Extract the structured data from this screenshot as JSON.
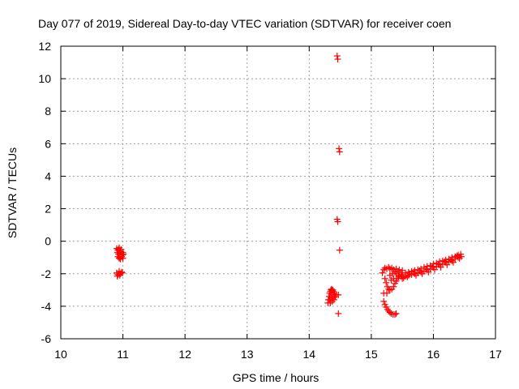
{
  "chart_data": {
    "type": "scatter",
    "title": "Day 077 of 2019, Sidereal Day-to-day VTEC variation (SDTVAR) for receiver coen",
    "xlabel": "GPS time / hours",
    "ylabel": "SDTVAR / TECUs",
    "xlim": [
      10,
      17
    ],
    "ylim": [
      -6,
      12
    ],
    "x_ticks": [
      "10",
      "11",
      "12",
      "13",
      "14",
      "15",
      "16",
      "17"
    ],
    "y_ticks": [
      "-6",
      "-4",
      "-2",
      "0",
      "2",
      "4",
      "6",
      "8",
      "10",
      "12"
    ],
    "grid": true,
    "marker": "+",
    "colors": {
      "series": "#ff0000",
      "grid": "#a0a0a0",
      "axis": "#000000"
    },
    "series": [
      {
        "name": "SDTVAR",
        "points": [
          [
            10.9,
            -0.45
          ],
          [
            10.92,
            -0.55
          ],
          [
            10.94,
            -0.4
          ],
          [
            10.96,
            -0.6
          ],
          [
            10.91,
            -0.7
          ],
          [
            10.93,
            -0.8
          ],
          [
            10.95,
            -0.75
          ],
          [
            10.97,
            -0.65
          ],
          [
            10.99,
            -0.85
          ],
          [
            10.92,
            -0.95
          ],
          [
            10.94,
            -1.05
          ],
          [
            10.96,
            -1.1
          ],
          [
            10.98,
            -0.95
          ],
          [
            11.0,
            -0.7
          ],
          [
            11.01,
            -0.8
          ],
          [
            10.93,
            -0.5
          ],
          [
            10.97,
            -0.5
          ],
          [
            10.95,
            -1.0
          ],
          [
            11.0,
            -1.05
          ],
          [
            10.9,
            -1.95
          ],
          [
            10.92,
            -2.05
          ],
          [
            10.94,
            -1.85
          ],
          [
            10.96,
            -2.0
          ],
          [
            10.98,
            -1.9
          ],
          [
            10.91,
            -2.15
          ],
          [
            10.95,
            -2.1
          ],
          [
            10.99,
            -1.95
          ],
          [
            14.45,
            11.4
          ],
          [
            14.46,
            11.2
          ],
          [
            14.48,
            5.7
          ],
          [
            14.49,
            5.5
          ],
          [
            14.45,
            1.35
          ],
          [
            14.46,
            1.2
          ],
          [
            14.49,
            -0.55
          ],
          [
            14.47,
            -4.45
          ],
          [
            14.3,
            -3.8
          ],
          [
            14.31,
            -3.6
          ],
          [
            14.32,
            -3.4
          ],
          [
            14.33,
            -3.2
          ],
          [
            14.34,
            -3.1
          ],
          [
            14.35,
            -3.0
          ],
          [
            14.36,
            -2.95
          ],
          [
            14.37,
            -3.05
          ],
          [
            14.38,
            -3.0
          ],
          [
            14.39,
            -3.1
          ],
          [
            14.4,
            -3.2
          ],
          [
            14.41,
            -3.3
          ],
          [
            14.42,
            -3.4
          ],
          [
            14.33,
            -3.6
          ],
          [
            14.35,
            -3.5
          ],
          [
            14.36,
            -3.3
          ],
          [
            14.38,
            -3.5
          ],
          [
            14.4,
            -3.6
          ],
          [
            14.44,
            -3.3
          ],
          [
            14.47,
            -3.3
          ],
          [
            14.34,
            -3.8
          ],
          [
            14.37,
            -3.7
          ],
          [
            15.2,
            -3.7
          ],
          [
            15.22,
            -3.9
          ],
          [
            15.24,
            -4.05
          ],
          [
            15.26,
            -4.2
          ],
          [
            15.28,
            -4.3
          ],
          [
            15.3,
            -4.38
          ],
          [
            15.32,
            -4.45
          ],
          [
            15.35,
            -4.5
          ],
          [
            15.38,
            -4.5
          ],
          [
            15.4,
            -4.45
          ],
          [
            15.18,
            -1.95
          ],
          [
            15.2,
            -1.75
          ],
          [
            15.22,
            -1.65
          ],
          [
            15.25,
            -1.7
          ],
          [
            15.28,
            -1.6
          ],
          [
            15.3,
            -1.7
          ],
          [
            15.33,
            -1.65
          ],
          [
            15.36,
            -1.75
          ],
          [
            15.4,
            -1.7
          ],
          [
            15.45,
            -1.75
          ],
          [
            15.5,
            -1.8
          ],
          [
            15.22,
            -2.3
          ],
          [
            15.24,
            -2.55
          ],
          [
            15.26,
            -2.8
          ],
          [
            15.28,
            -2.95
          ],
          [
            15.3,
            -3.0
          ],
          [
            15.33,
            -2.95
          ],
          [
            15.36,
            -2.8
          ],
          [
            15.38,
            -2.6
          ],
          [
            15.4,
            -2.45
          ],
          [
            15.25,
            -3.2
          ],
          [
            15.2,
            -3.2
          ],
          [
            15.42,
            -2.3
          ],
          [
            15.44,
            -2.2
          ],
          [
            15.48,
            -2.15
          ],
          [
            15.3,
            -2.1
          ],
          [
            15.34,
            -2.0
          ],
          [
            15.38,
            -1.9
          ],
          [
            15.32,
            -2.4
          ],
          [
            15.36,
            -2.3
          ],
          [
            15.5,
            -2.05
          ],
          [
            15.55,
            -1.95
          ],
          [
            15.6,
            -1.9
          ],
          [
            15.65,
            -1.85
          ],
          [
            15.7,
            -1.8
          ],
          [
            15.75,
            -1.75
          ],
          [
            15.8,
            -1.7
          ],
          [
            15.85,
            -1.6
          ],
          [
            15.9,
            -1.55
          ],
          [
            15.95,
            -1.5
          ],
          [
            16.0,
            -1.4
          ],
          [
            16.05,
            -1.35
          ],
          [
            16.1,
            -1.25
          ],
          [
            16.15,
            -1.2
          ],
          [
            16.2,
            -1.15
          ],
          [
            16.25,
            -1.1
          ],
          [
            16.3,
            -1.0
          ],
          [
            16.35,
            -0.95
          ],
          [
            16.4,
            -0.85
          ],
          [
            16.44,
            -0.8
          ],
          [
            15.55,
            -2.15
          ],
          [
            15.6,
            -2.1
          ],
          [
            15.65,
            -2.05
          ],
          [
            15.7,
            -2.0
          ],
          [
            15.75,
            -1.95
          ],
          [
            15.8,
            -1.9
          ],
          [
            15.85,
            -1.85
          ],
          [
            15.9,
            -1.75
          ],
          [
            15.95,
            -1.7
          ],
          [
            16.0,
            -1.6
          ],
          [
            16.05,
            -1.55
          ],
          [
            16.1,
            -1.45
          ],
          [
            16.15,
            -1.4
          ],
          [
            16.2,
            -1.3
          ],
          [
            16.25,
            -1.25
          ],
          [
            16.3,
            -1.2
          ],
          [
            16.35,
            -1.1
          ],
          [
            16.4,
            -1.0
          ],
          [
            16.45,
            -0.95
          ],
          [
            15.52,
            -2.25
          ],
          [
            15.58,
            -2.2
          ],
          [
            15.62,
            -2.0
          ],
          [
            15.68,
            -1.9
          ],
          [
            15.72,
            -2.1
          ],
          [
            15.78,
            -1.8
          ],
          [
            15.82,
            -2.0
          ],
          [
            15.88,
            -1.7
          ],
          [
            15.92,
            -1.9
          ],
          [
            15.98,
            -1.55
          ],
          [
            16.02,
            -1.75
          ],
          [
            16.08,
            -1.4
          ],
          [
            16.12,
            -1.6
          ],
          [
            16.18,
            -1.25
          ],
          [
            16.22,
            -1.45
          ],
          [
            16.28,
            -1.15
          ],
          [
            16.32,
            -1.3
          ],
          [
            16.38,
            -0.9
          ],
          [
            16.42,
            -1.05
          ],
          [
            15.45,
            -2.1
          ],
          [
            15.48,
            -1.95
          ],
          [
            15.5,
            -2.3
          ],
          [
            15.4,
            -2.0
          ],
          [
            15.43,
            -1.85
          ]
        ]
      }
    ]
  }
}
